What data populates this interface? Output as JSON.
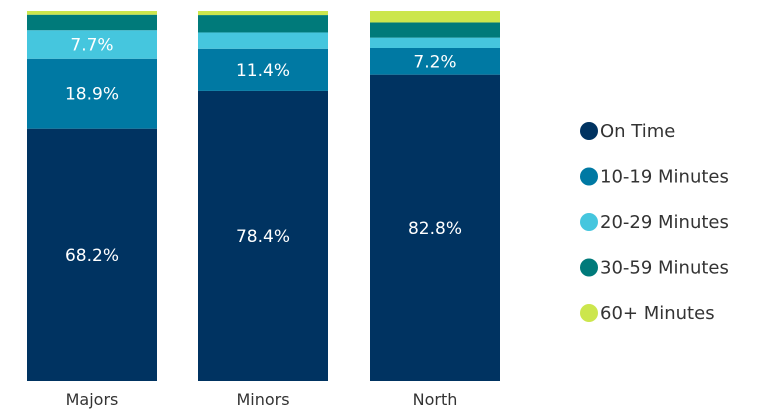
{
  "chart_data": {
    "type": "bar",
    "stacked": true,
    "orientation": "vertical",
    "categories": [
      "Majors",
      "Minors",
      "North"
    ],
    "series": [
      {
        "name": "On Time",
        "color": "#003361",
        "values": [
          68.2,
          78.4,
          82.8
        ],
        "labels": [
          "68.2%",
          "78.4%",
          "82.8%"
        ]
      },
      {
        "name": "10-19 Minutes",
        "color": "#0079a3",
        "values": [
          18.9,
          11.4,
          7.2
        ],
        "labels": [
          "18.9%",
          "11.4%",
          "7.2%"
        ]
      },
      {
        "name": "20-29 Minutes",
        "color": "#45c6de",
        "values": [
          7.7,
          4.4,
          2.8
        ],
        "labels": [
          "7.7%",
          "",
          ""
        ]
      },
      {
        "name": "30-59 Minutes",
        "color": "#007a7a",
        "values": [
          4.2,
          4.7,
          4.1
        ],
        "labels": [
          "",
          "",
          ""
        ]
      },
      {
        "name": "60+ Minutes",
        "color": "#cce64d",
        "values": [
          1.0,
          1.1,
          3.1
        ],
        "labels": [
          "",
          "",
          ""
        ]
      }
    ],
    "ylim": [
      0,
      100
    ],
    "legend_position": "right",
    "grid": false
  }
}
